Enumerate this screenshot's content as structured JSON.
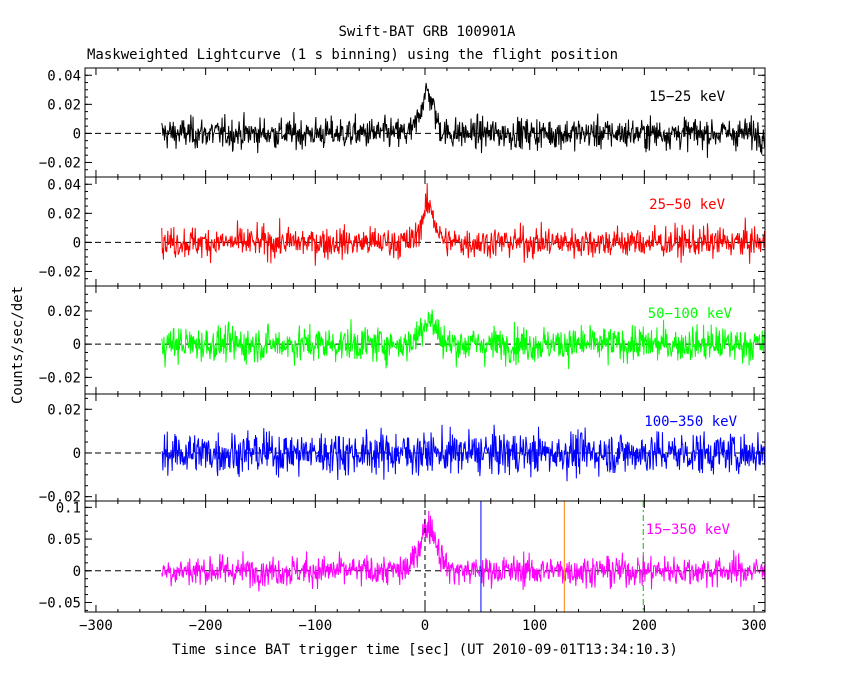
{
  "title": "Swift-BAT GRB 100901A",
  "subtitle": "Maskweighted Lightcurve (1 s binning) using the flight position",
  "xlabel": "Time since BAT trigger time [sec] (UT 2010-09-01T13:34:10.3)",
  "ylabel": "Counts/sec/det",
  "chart_data": {
    "type": "line",
    "title": "Swift-BAT GRB 100901A",
    "subtitle": "Maskweighted Lightcurve (1 s binning) using the flight position",
    "xlabel": "Time since BAT trigger time [sec] (UT 2010-09-01T13:34:10.3)",
    "ylabel": "Counts/sec/det",
    "xlim": [
      -310,
      310
    ],
    "x_ticks": [
      -300,
      -200,
      -100,
      0,
      100,
      200,
      300
    ],
    "x_tick_labels": [
      "−300",
      "−200",
      "−100",
      "0",
      "100",
      "200",
      "300"
    ],
    "data_x_range": [
      -240,
      310
    ],
    "binning_sec": 1,
    "reference_lines": [
      {
        "x": 0,
        "style": "dashed",
        "color": "#000000",
        "panel": "15-350 keV"
      },
      {
        "x": 51,
        "style": "solid",
        "color": "#0000ff",
        "panel": "15-350 keV"
      },
      {
        "x": 127,
        "style": "solid",
        "color": "#ff8000",
        "panel": "15-350 keV"
      },
      {
        "x": 199,
        "style": "dash-dot",
        "color": "#00c000",
        "panel": "15-350 keV"
      }
    ],
    "panels": [
      {
        "name": "15−25 keV",
        "color": "#000000",
        "ylim": [
          -0.03,
          0.045
        ],
        "yticks": [
          -0.02,
          0,
          0.02,
          0.04
        ],
        "ytick_labels": [
          "−0.02",
          "0",
          "0.02",
          "0.04"
        ],
        "noise": 0.0075,
        "peak": 0.028,
        "peak_x": 2,
        "peak_width": 6
      },
      {
        "name": "25−50 keV",
        "color": "#ff0000",
        "ylim": [
          -0.03,
          0.045
        ],
        "yticks": [
          -0.02,
          0,
          0.02,
          0.04
        ],
        "ytick_labels": [
          "−0.02",
          "0",
          "0.02",
          "0.04"
        ],
        "noise": 0.0075,
        "peak": 0.025,
        "peak_x": 3,
        "peak_width": 6
      },
      {
        "name": "50−100 keV",
        "color": "#00ff00",
        "ylim": [
          -0.03,
          0.035
        ],
        "yticks": [
          -0.02,
          0,
          0.02
        ],
        "ytick_labels": [
          "−0.02",
          "0",
          "0.02"
        ],
        "noise": 0.0075,
        "peak": 0.015,
        "peak_x": 3,
        "peak_width": 7
      },
      {
        "name": "100−350 keV",
        "color": "#0000ff",
        "ylim": [
          -0.022,
          0.027
        ],
        "yticks": [
          -0.02,
          0,
          0.02
        ],
        "ytick_labels": [
          "−0.02",
          "0",
          "0.02"
        ],
        "noise": 0.0068,
        "peak": 0.0,
        "peak_x": 0,
        "peak_width": 5
      },
      {
        "name": "15−350 keV",
        "color": "#ff00ff",
        "ylim": [
          -0.065,
          0.11
        ],
        "yticks": [
          -0.05,
          0,
          0.05,
          0.1
        ],
        "ytick_labels": [
          "−0.05",
          "0",
          "0.05",
          "0.1"
        ],
        "noise": 0.017,
        "peak": 0.07,
        "peak_x": 3,
        "peak_width": 8
      }
    ]
  }
}
